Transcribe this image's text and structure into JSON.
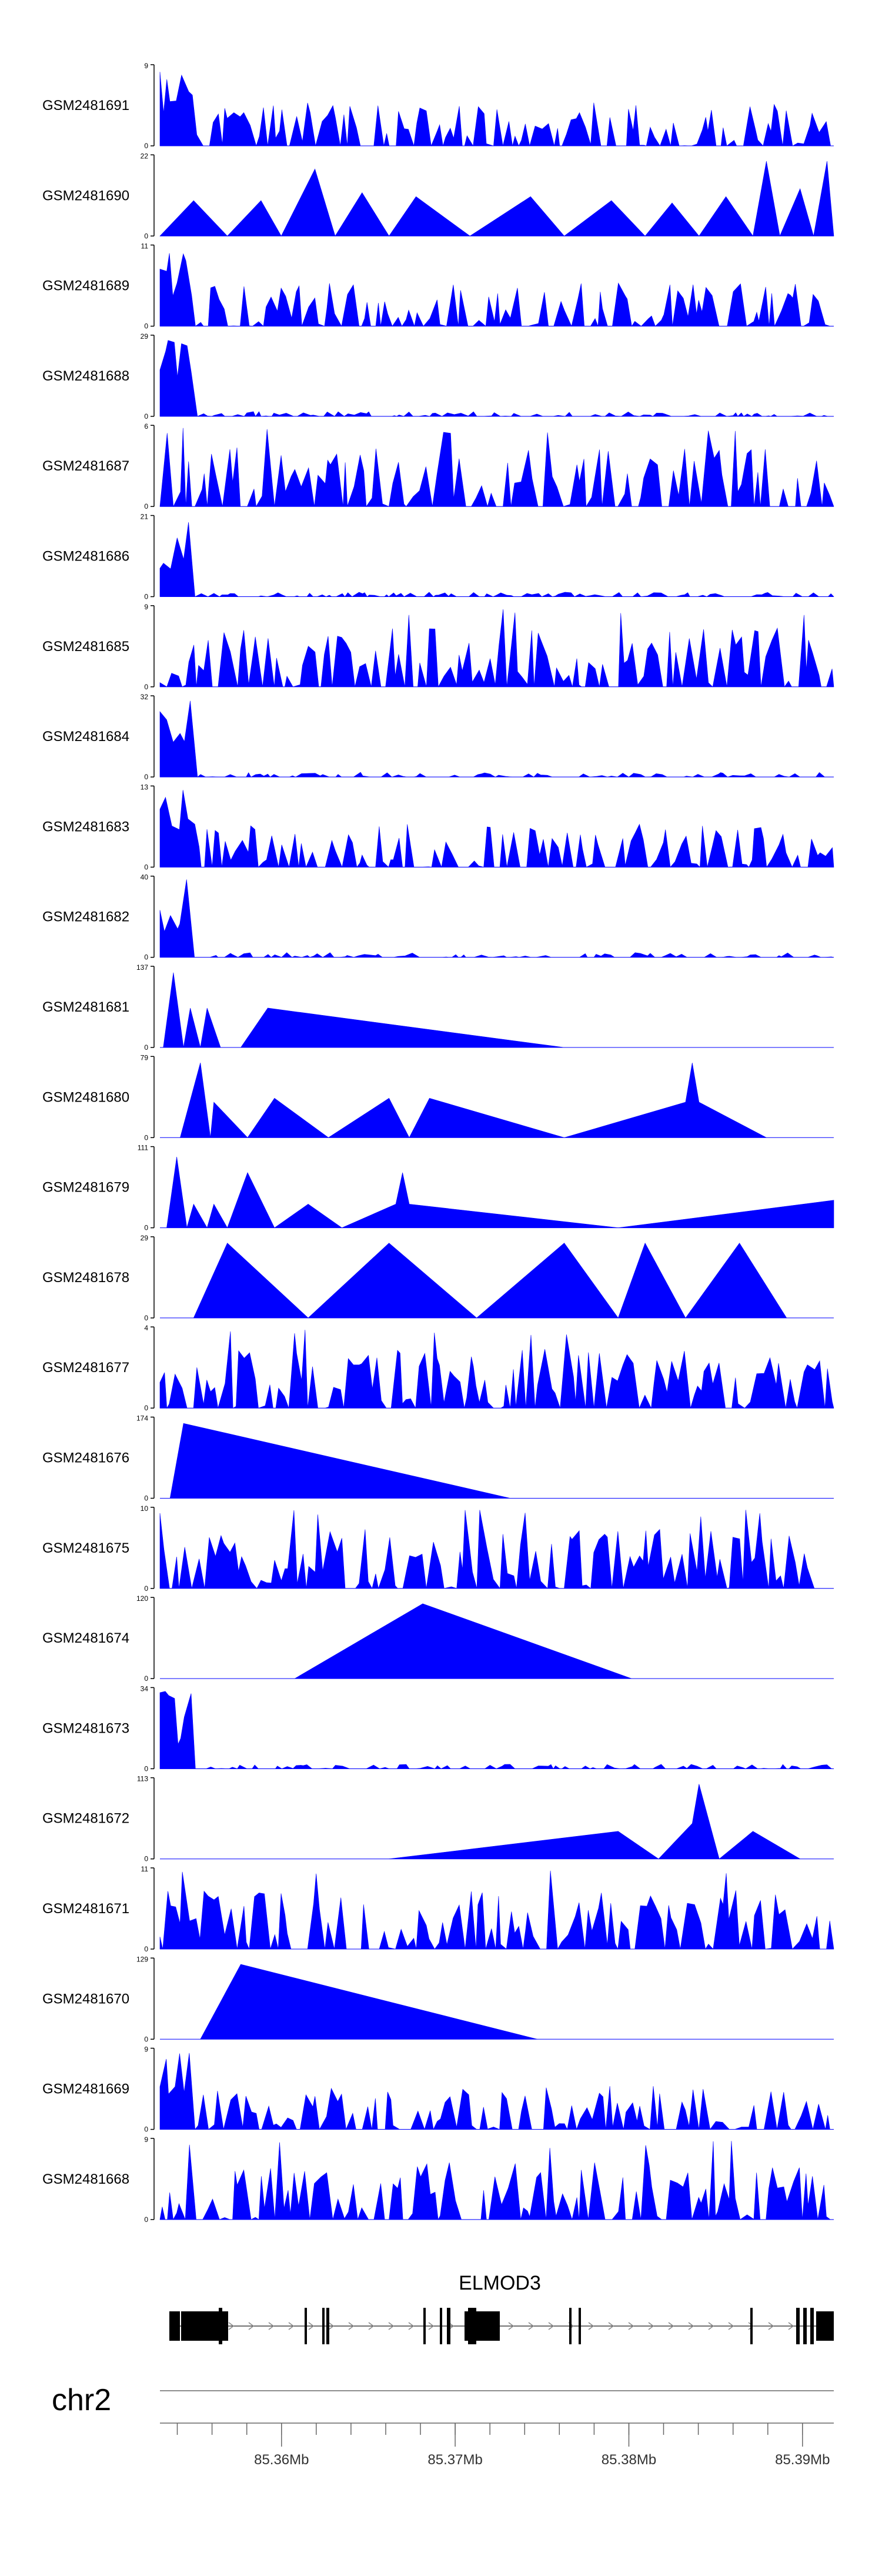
{
  "chart_data": {
    "type": "area",
    "title": "",
    "fill_color": "#0000ff",
    "axis_color": "#000000",
    "tracks": [
      {
        "name": "GSM2481691",
        "ymax": 9,
        "profile": "noise-early",
        "seed": 11
      },
      {
        "name": "GSM2481690",
        "ymax": 22,
        "profile": "tri-series",
        "seed": 12
      },
      {
        "name": "GSM2481689",
        "ymax": 11,
        "profile": "noise-early",
        "seed": 13
      },
      {
        "name": "GSM2481688",
        "ymax": 29,
        "profile": "peak-early",
        "seed": 14
      },
      {
        "name": "GSM2481687",
        "ymax": 6,
        "profile": "noise",
        "seed": 15
      },
      {
        "name": "GSM2481686",
        "ymax": 21,
        "profile": "peak-early",
        "seed": 16
      },
      {
        "name": "GSM2481685",
        "ymax": 9,
        "profile": "noise",
        "seed": 17
      },
      {
        "name": "GSM2481684",
        "ymax": 32,
        "profile": "peak-early",
        "seed": 18
      },
      {
        "name": "GSM2481683",
        "ymax": 13,
        "profile": "noise-early",
        "seed": 19
      },
      {
        "name": "GSM2481682",
        "ymax": 40,
        "profile": "peak-early",
        "seed": 20
      },
      {
        "name": "GSM2481681",
        "ymax": 137,
        "profile": "sparse1",
        "seed": 21
      },
      {
        "name": "GSM2481680",
        "ymax": 79,
        "profile": "sparse2",
        "seed": 22
      },
      {
        "name": "GSM2481679",
        "ymax": 111,
        "profile": "sparse3",
        "seed": 23
      },
      {
        "name": "GSM2481678",
        "ymax": 29,
        "profile": "sparse4",
        "seed": 24
      },
      {
        "name": "GSM2481677",
        "ymax": 4,
        "profile": "noise",
        "seed": 25
      },
      {
        "name": "GSM2481676",
        "ymax": 174,
        "profile": "sparse5",
        "seed": 26
      },
      {
        "name": "GSM2481675",
        "ymax": 10,
        "profile": "noise",
        "seed": 27
      },
      {
        "name": "GSM2481674",
        "ymax": 120,
        "profile": "sparse6",
        "seed": 28
      },
      {
        "name": "GSM2481673",
        "ymax": 34,
        "profile": "peak-early",
        "seed": 29
      },
      {
        "name": "GSM2481672",
        "ymax": 113,
        "profile": "sparse7",
        "seed": 30
      },
      {
        "name": "GSM2481671",
        "ymax": 11,
        "profile": "noise",
        "seed": 31
      },
      {
        "name": "GSM2481670",
        "ymax": 129,
        "profile": "sparse8",
        "seed": 32
      },
      {
        "name": "GSM2481669",
        "ymax": 9,
        "profile": "noise-early",
        "seed": 33
      },
      {
        "name": "GSM2481668",
        "ymax": 9,
        "profile": "noise",
        "seed": 34
      }
    ],
    "gene": {
      "name": "ELMOD3",
      "strand": "+"
    },
    "chromosome": "chr2",
    "x_axis": {
      "range": [
        85.353,
        85.3918
      ],
      "unit": "Mb",
      "major_ticks": [
        85.36,
        85.37,
        85.38,
        85.39
      ],
      "tick_labels": [
        "85.36Mb",
        "85.37Mb",
        "85.38Mb",
        "85.39Mb"
      ]
    },
    "ylabel": "",
    "xlabel": ""
  }
}
